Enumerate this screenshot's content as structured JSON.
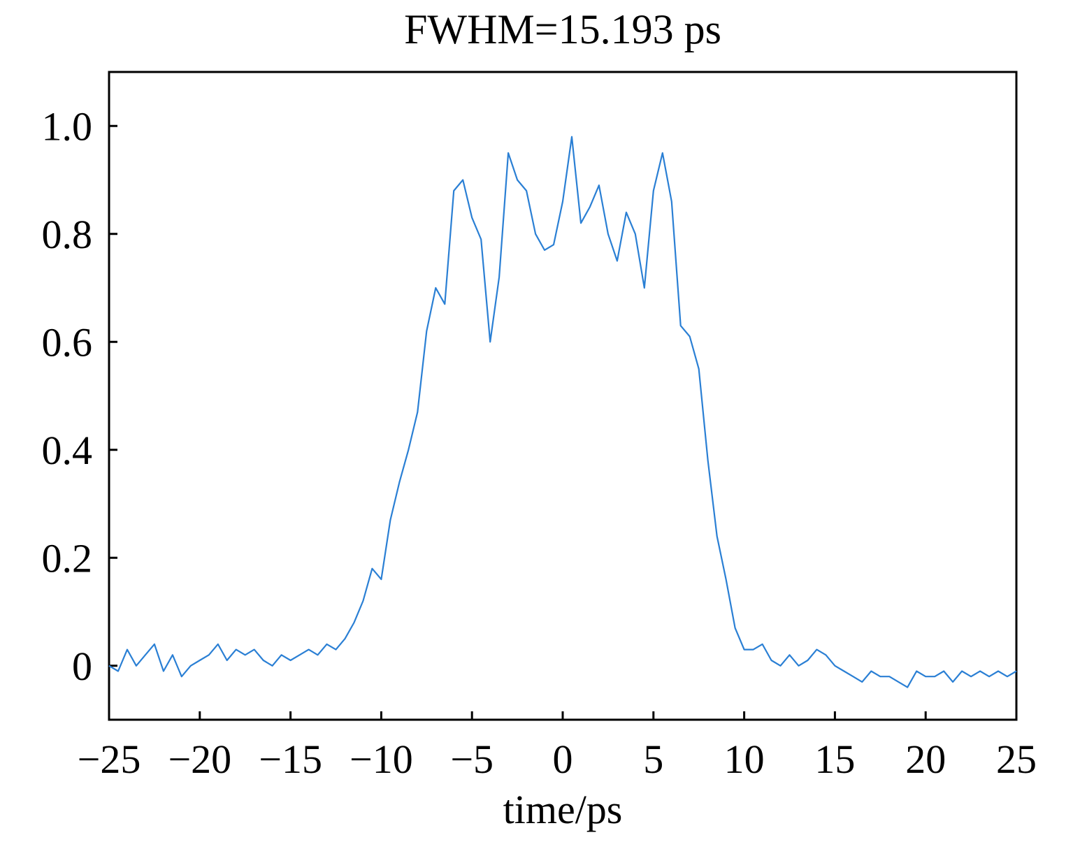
{
  "chart_data": {
    "type": "line",
    "title": "FWHM=15.193 ps",
    "xlabel": "time/ps",
    "ylabel": "",
    "xlim": [
      -25,
      25
    ],
    "ylim": [
      -0.1,
      1.1
    ],
    "x_ticks": [
      -25,
      -20,
      -15,
      -10,
      -5,
      0,
      5,
      10,
      15,
      20,
      25
    ],
    "x_tick_labels": [
      "−25",
      "−20",
      "−15",
      "−10",
      "−5",
      "0",
      "5",
      "10",
      "15",
      "20",
      "25"
    ],
    "y_ticks": [
      0,
      0.2,
      0.4,
      0.6,
      0.8,
      1.0
    ],
    "y_tick_labels": [
      "0",
      "0.2",
      "0.4",
      "0.6",
      "0.8",
      "1.0"
    ],
    "grid": false,
    "legend": "none",
    "series": [
      {
        "color": "#2a7fd4",
        "x": [
          -25,
          -24.5,
          -24,
          -23.5,
          -23,
          -22.5,
          -22,
          -21.5,
          -21,
          -20.5,
          -20,
          -19.5,
          -19,
          -18.5,
          -18,
          -17.5,
          -17,
          -16.5,
          -16,
          -15.5,
          -15,
          -14.5,
          -14,
          -13.5,
          -13,
          -12.5,
          -12,
          -11.5,
          -11,
          -10.5,
          -10,
          -9.5,
          -9,
          -8.5,
          -8,
          -7.5,
          -7,
          -6.5,
          -6,
          -5.5,
          -5,
          -4.5,
          -4,
          -3.5,
          -3,
          -2.5,
          -2,
          -1.5,
          -1,
          -0.5,
          0,
          0.5,
          1,
          1.5,
          2,
          2.5,
          3,
          3.5,
          4,
          4.5,
          5,
          5.5,
          6,
          6.5,
          7,
          7.5,
          8,
          8.5,
          9,
          9.5,
          10,
          10.5,
          11,
          11.5,
          12,
          12.5,
          13,
          13.5,
          14,
          14.5,
          15,
          15.5,
          16,
          16.5,
          17,
          17.5,
          18,
          18.5,
          19,
          19.5,
          20,
          20.5,
          21,
          21.5,
          22,
          22.5,
          23,
          23.5,
          24,
          24.5,
          25
        ],
        "y": [
          0.0,
          -0.01,
          0.03,
          0.0,
          0.02,
          0.04,
          -0.01,
          0.02,
          -0.02,
          0.0,
          0.01,
          0.02,
          0.04,
          0.01,
          0.03,
          0.02,
          0.03,
          0.01,
          0.0,
          0.02,
          0.01,
          0.02,
          0.03,
          0.02,
          0.04,
          0.03,
          0.05,
          0.08,
          0.12,
          0.18,
          0.16,
          0.27,
          0.34,
          0.4,
          0.47,
          0.62,
          0.7,
          0.67,
          0.88,
          0.9,
          0.83,
          0.79,
          0.6,
          0.72,
          0.95,
          0.9,
          0.88,
          0.8,
          0.77,
          0.78,
          0.86,
          0.98,
          0.82,
          0.85,
          0.89,
          0.8,
          0.75,
          0.84,
          0.8,
          0.7,
          0.88,
          0.95,
          0.86,
          0.63,
          0.61,
          0.55,
          0.38,
          0.24,
          0.16,
          0.07,
          0.03,
          0.03,
          0.04,
          0.01,
          0.0,
          0.02,
          0.0,
          0.01,
          0.03,
          0.02,
          0.0,
          -0.01,
          -0.02,
          -0.03,
          -0.01,
          -0.02,
          -0.02,
          -0.03,
          -0.04,
          -0.01,
          -0.02,
          -0.02,
          -0.01,
          -0.03,
          -0.01,
          -0.02,
          -0.01,
          -0.02,
          -0.01,
          -0.02,
          -0.01
        ]
      }
    ]
  }
}
